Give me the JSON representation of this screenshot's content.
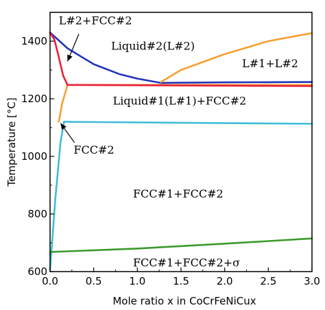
{
  "chart_data": {
    "type": "line",
    "xlabel": "Mole ratio   x in CoCrFeNiCux",
    "ylabel": "Temperature [°C]",
    "xlim": [
      0.0,
      3.0
    ],
    "ylim": [
      600,
      1500
    ],
    "xticks": [
      0.0,
      0.5,
      1.0,
      1.5,
      2.0,
      2.5,
      3.0
    ],
    "xtick_labels": [
      "0.0",
      "0.5",
      "1.0",
      "1.5",
      "2.0",
      "2.5",
      "3.0"
    ],
    "yticks": [
      600,
      800,
      1000,
      1200,
      1400
    ],
    "ytick_labels": [
      "600",
      "800",
      "1000",
      "1200",
      "1400"
    ],
    "grid": false,
    "colors": {
      "blue": "#2233bb",
      "orange": "#f5a030",
      "red": "#e8203a",
      "cyan": "#40bcd8",
      "green": "#3a9a2a",
      "axis": "#000000"
    },
    "series": [
      {
        "color_key": "blue",
        "points": [
          [
            0.0,
            1430
          ],
          [
            0.2,
            1375
          ],
          [
            0.5,
            1320
          ],
          [
            0.8,
            1285
          ],
          [
            1.0,
            1270
          ],
          [
            1.27,
            1255
          ],
          [
            2.0,
            1257
          ],
          [
            3.0,
            1258
          ]
        ]
      },
      {
        "color_key": "orange",
        "points": [
          [
            1.27,
            1258
          ],
          [
            1.5,
            1300
          ],
          [
            2.0,
            1355
          ],
          [
            2.5,
            1400
          ],
          [
            3.0,
            1428
          ]
        ]
      },
      {
        "color_key": "orange",
        "points": [
          [
            0.2,
            1248
          ],
          [
            1.27,
            1248
          ],
          [
            2.0,
            1248
          ],
          [
            3.0,
            1248
          ]
        ]
      },
      {
        "color_key": "orange",
        "points": [
          [
            0.1,
            1120
          ],
          [
            0.14,
            1185
          ],
          [
            0.2,
            1248
          ]
        ]
      },
      {
        "color_key": "red",
        "points": [
          [
            0.2,
            1248
          ],
          [
            3.0,
            1244
          ]
        ]
      },
      {
        "color_key": "red",
        "points": [
          [
            0.0,
            1430
          ],
          [
            0.05,
            1405
          ],
          [
            0.1,
            1345
          ],
          [
            0.15,
            1280
          ],
          [
            0.2,
            1248
          ]
        ]
      },
      {
        "color_key": "cyan",
        "points": [
          [
            0.0,
            605
          ],
          [
            0.06,
            850
          ],
          [
            0.12,
            1050
          ],
          [
            0.16,
            1120
          ]
        ]
      },
      {
        "color_key": "cyan",
        "points": [
          [
            0.16,
            1120
          ],
          [
            3.0,
            1113
          ]
        ]
      },
      {
        "color_key": "green",
        "points": [
          [
            0.0,
            668
          ],
          [
            1.0,
            680
          ],
          [
            2.0,
            697
          ],
          [
            3.0,
            715
          ]
        ]
      }
    ],
    "annotations": [
      {
        "text": "L#2+FCC#2",
        "x": 0.1,
        "y": 1458
      },
      {
        "text": "Liquid#2(L#2)",
        "x": 0.7,
        "y": 1370
      },
      {
        "text": "L#1+L#2",
        "x": 2.2,
        "y": 1310
      },
      {
        "text": "Liquid#1(L#1)+FCC#2",
        "x": 0.72,
        "y": 1180
      },
      {
        "text": "FCC#2",
        "x": 0.27,
        "y": 1010
      },
      {
        "text": "FCC#1+FCC#2",
        "x": 0.95,
        "y": 857
      },
      {
        "text": "FCC#1+FCC#2+σ",
        "x": 0.95,
        "y": 618
      }
    ],
    "arrows": [
      {
        "from": [
          0.33,
          1425
        ],
        "to": [
          0.2,
          1330
        ]
      },
      {
        "from": [
          0.28,
          1048
        ],
        "to": [
          0.12,
          1115
        ]
      }
    ]
  }
}
